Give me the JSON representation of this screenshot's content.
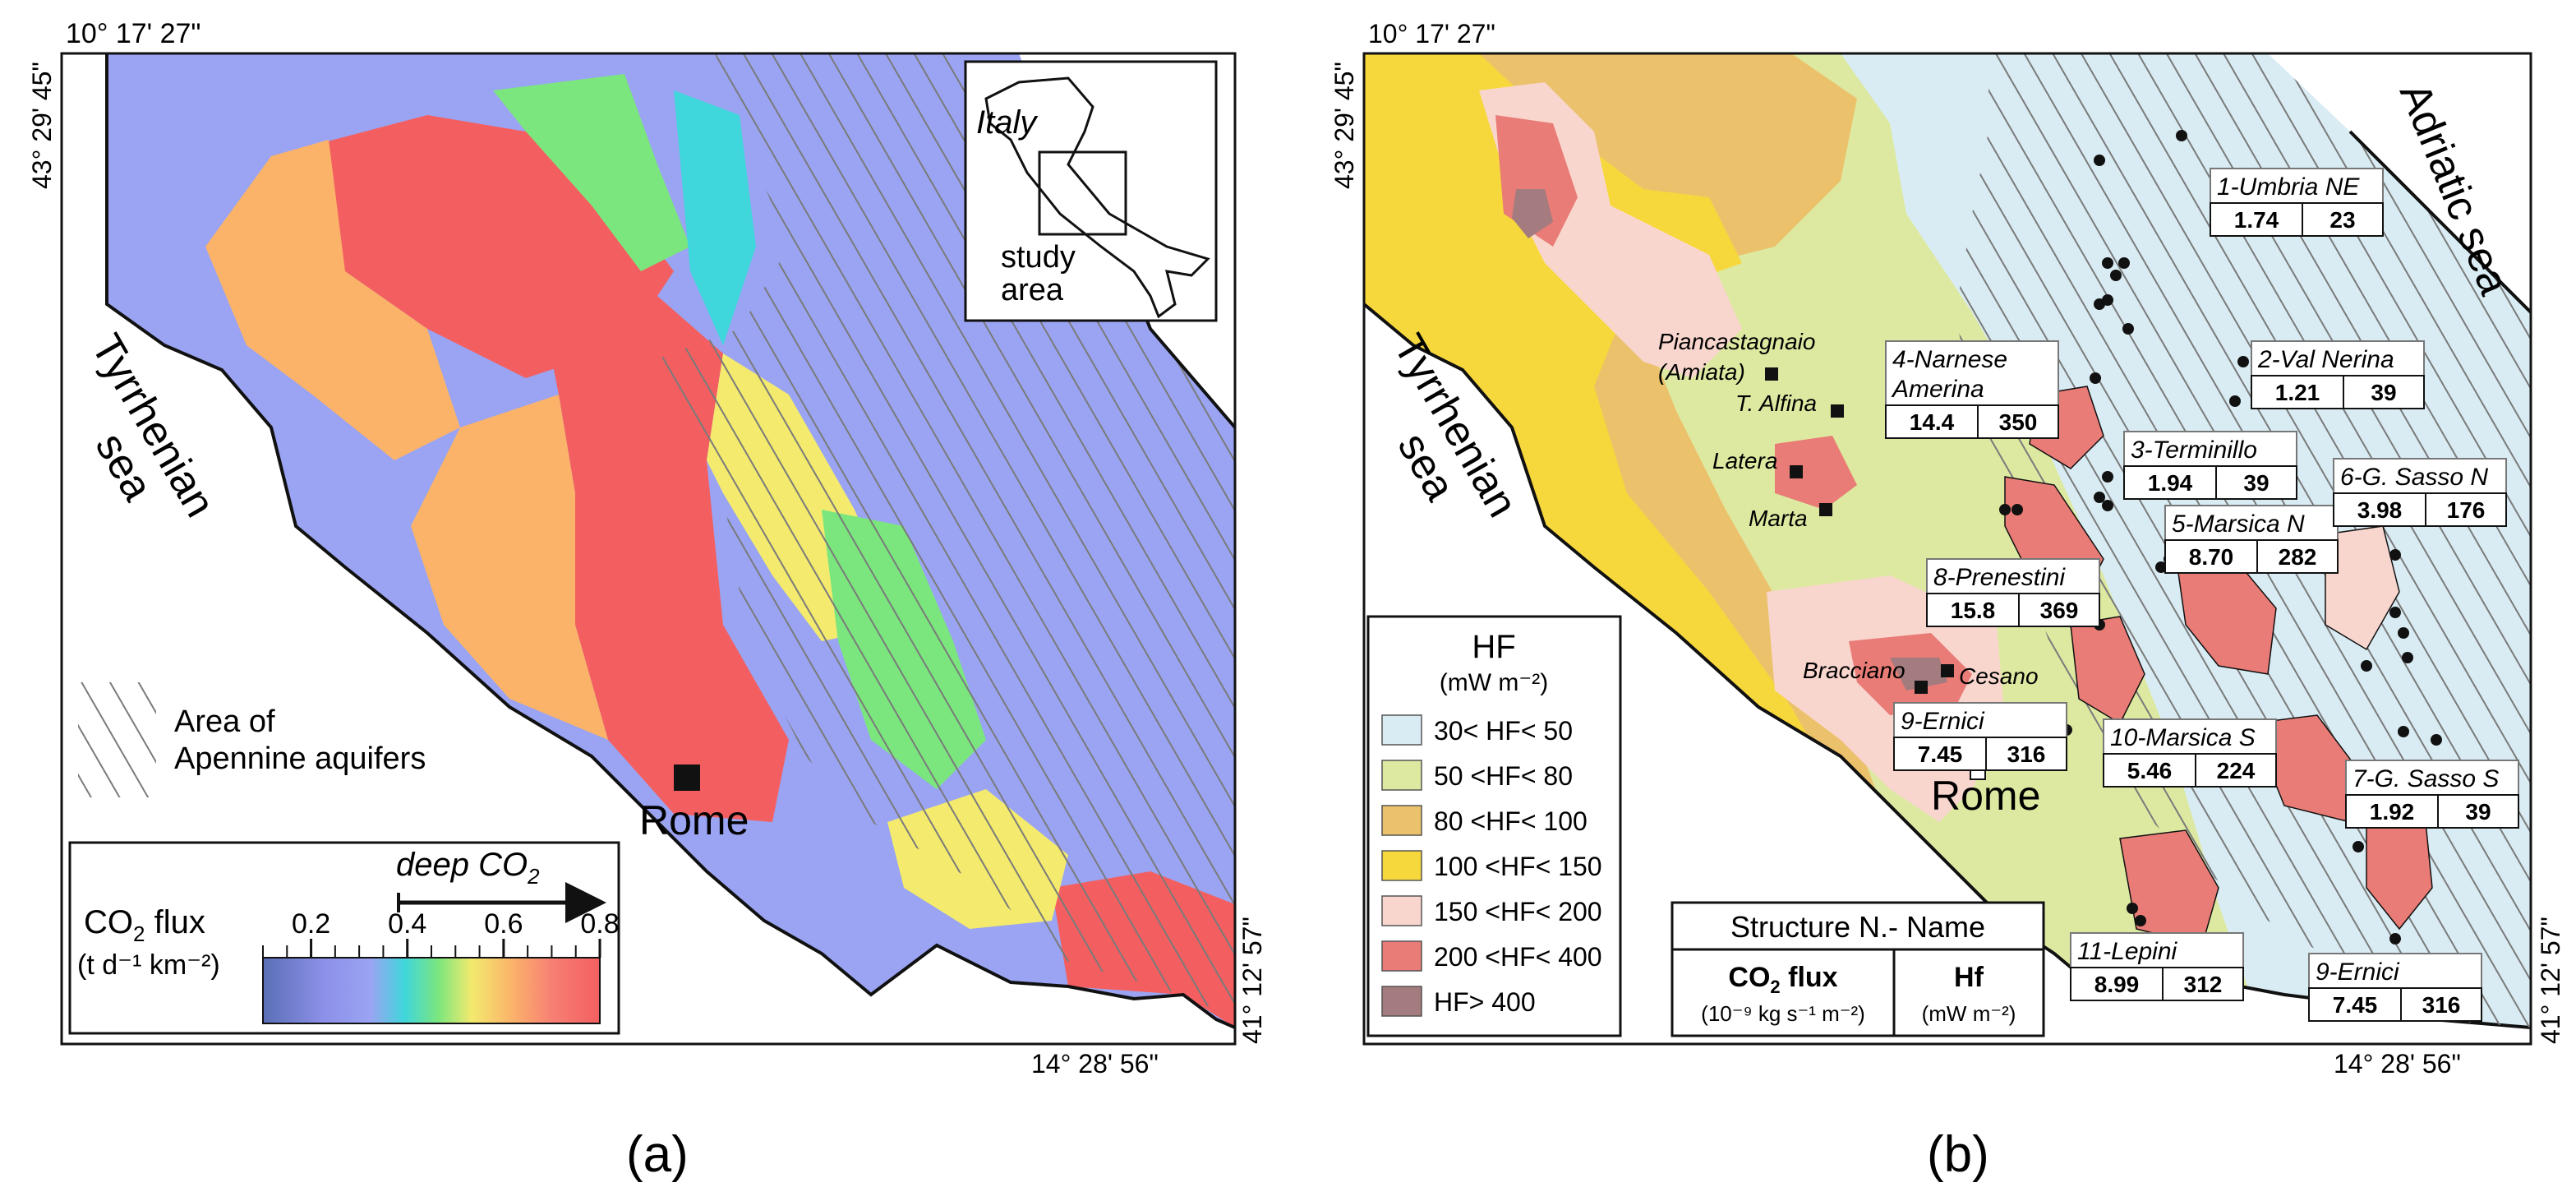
{
  "panel_a": {
    "letter": "(a)",
    "coords": {
      "top_left": "10° 17' 27\"",
      "left_lat": "43° 29' 45\"",
      "right_lat": "41° 12' 57\"",
      "bottom_right": "14° 28' 56\""
    },
    "sea_label": [
      "Tyrrhenian",
      "sea"
    ],
    "city": "Rome",
    "inset": {
      "country": "Italy",
      "area_lines": [
        "study",
        "area"
      ]
    },
    "hatch_legend": [
      "Area of",
      "Apennine aquifers"
    ],
    "colorbar": {
      "title_main": "CO",
      "title_sub": "2",
      "title_end": " flux",
      "units": "(t d⁻¹ km⁻²)",
      "arrow_label_main": "deep CO",
      "arrow_label_sub": "2",
      "ticks": [
        "0.2",
        "0.4",
        "0.6",
        "0.8"
      ],
      "tick_values": [
        0.2,
        0.4,
        0.6,
        0.8
      ],
      "colors": [
        "#5a6fb5",
        "#8c90e8",
        "#9aa4f2",
        "#3fd6dc",
        "#7be67e",
        "#f3ea6e",
        "#fbb36a",
        "#f77f74",
        "#f35f60"
      ]
    }
  },
  "panel_b": {
    "letter": "(b)",
    "coords": {
      "top_left": "10° 17' 27\"",
      "left_lat": "43° 29' 45\"",
      "right_lat": "41° 12' 57\"",
      "bottom_right": "14° 28' 56\""
    },
    "sea_left": [
      "Tyrrhenian",
      "sea"
    ],
    "sea_right": "Adriatic sea",
    "city": "Rome",
    "legend": {
      "title": "HF",
      "units": "(mW m⁻²)",
      "classes": [
        {
          "label": "30< HF< 50",
          "color": "#d9ecf3"
        },
        {
          "label": "50 <HF< 80",
          "color": "#dde9a1"
        },
        {
          "label": "80 <HF< 100",
          "color": "#ecc16c"
        },
        {
          "label": "100 <HF< 150",
          "color": "#f7d83c"
        },
        {
          "label": "150 <HF< 200",
          "color": "#f8d6cd"
        },
        {
          "label": "200 <HF< 400",
          "color": "#e97c76"
        },
        {
          "label": "HF> 400",
          "color": "#a47b7e"
        }
      ]
    },
    "key": {
      "header": "Structure N.- Name",
      "col1_main": "CO",
      "col1_sub": "2",
      "col1_end": " flux",
      "col1_units": "(10⁻⁹ kg s⁻¹ m⁻²)",
      "col2": "Hf",
      "col2_units": "(mW m⁻²)"
    },
    "sites": [
      "Piancastagnaio",
      "(Amiata)",
      "T. Alfina",
      "Latera",
      "Marta",
      "Bracciano",
      "Cesano"
    ],
    "structures": [
      {
        "name": "1-Umbria NE",
        "co2": "1.74",
        "hf": "23"
      },
      {
        "name": "2-Val Nerina",
        "co2": "1.21",
        "hf": "39"
      },
      {
        "name": "3-Terminillo",
        "co2": "1.94",
        "hf": "39"
      },
      {
        "name": "4-Narnese",
        "name2": "Amerina",
        "co2": "14.4",
        "hf": "350"
      },
      {
        "name": "5-Marsica N",
        "co2": "8.70",
        "hf": "282"
      },
      {
        "name": "6-G. Sasso N",
        "co2": "3.98",
        "hf": "176"
      },
      {
        "name": "7-G. Sasso S",
        "co2": "1.92",
        "hf": "39"
      },
      {
        "name": "8-Prenestini",
        "co2": "15.8",
        "hf": "369"
      },
      {
        "name": "9-Ernici",
        "co2": "7.45",
        "hf": "316"
      },
      {
        "name": "10-Marsica S",
        "co2": "5.46",
        "hf": "224"
      },
      {
        "name": "11-Lepini",
        "co2": "8.99",
        "hf": "312"
      },
      {
        "name": "9-Ernici",
        "co2": "7.45",
        "hf": "316"
      }
    ]
  }
}
